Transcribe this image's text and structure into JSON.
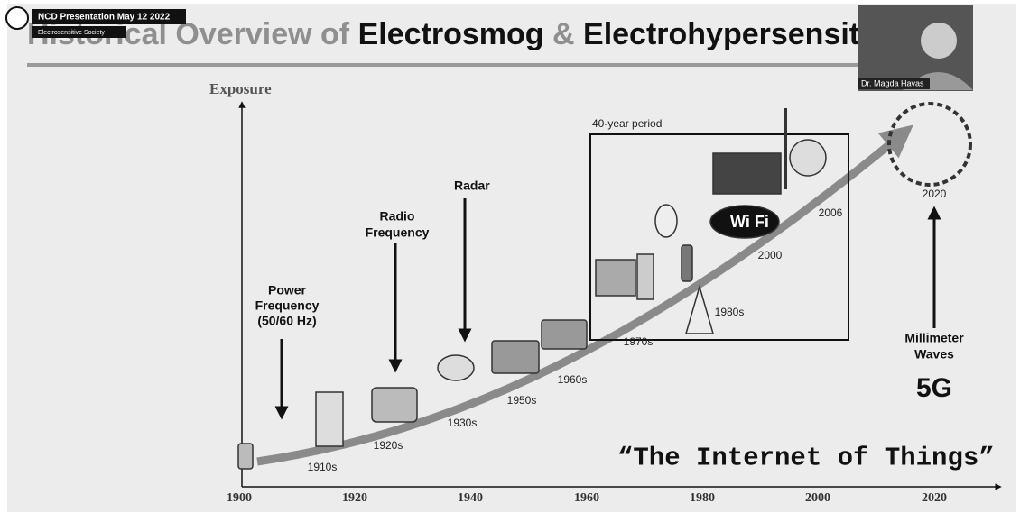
{
  "meeting": {
    "title": "NCD Presentation May 12 2022",
    "subtitle": "Electrosensitive Society"
  },
  "slide": {
    "title": {
      "part1": "Historical Overview of",
      "part2": "Electrosmog",
      "part3": "&",
      "part4": "Electrohypersensitivity"
    },
    "y_axis_label": "Exposure",
    "years": [
      1900,
      1920,
      1940,
      1960,
      1980,
      2000,
      2020
    ],
    "eras": [
      "1910s",
      "1920s",
      "1930s",
      "1950s",
      "1960s",
      "1970s",
      "1980s",
      "2000",
      "2006",
      "2020"
    ],
    "power_frequency": [
      "Power",
      "Frequency",
      "(50/60 Hz)"
    ],
    "radio_frequency": [
      "Radio",
      "Frequency"
    ],
    "radar": "Radar",
    "period_box": "40-year period",
    "millimeter_waves": [
      "Millimeter",
      "Waves"
    ],
    "five_g": "5G",
    "iot": "“The Internet of Things”"
  },
  "video": {
    "name": "Dr. Magda Havas"
  }
}
